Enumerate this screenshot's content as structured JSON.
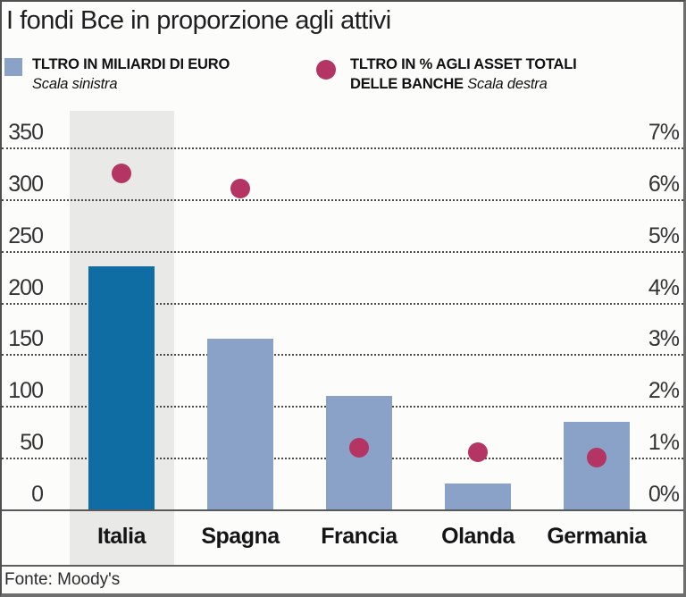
{
  "title": "I fondi Bce in proporzione agli attivi",
  "source": "Fonte: Moody's",
  "legend": {
    "series1_label": "TLTRO IN MILIARDI DI EURO",
    "series1_scale_note": "Scala sinistra",
    "series2_label_line1": "TLTRO IN % AGLI ASSET TOTALI",
    "series2_label_line2": "DELLE BANCHE",
    "series2_scale_note": "Scala destra"
  },
  "colors": {
    "bar_default": "#8aa2c8",
    "bar_highlight": "#0f6da4",
    "dot": "#b43563",
    "highlight_band": "#e9e9e7",
    "gridline": "#4a4a4a",
    "baseline": "#58595b"
  },
  "chart_data": {
    "type": "bar",
    "title": "I fondi Bce in proporzione agli attivi",
    "categories": [
      "Italia",
      "Spagna",
      "Francia",
      "Olanda",
      "Germania"
    ],
    "series": [
      {
        "name": "TLTRO IN MILIARDI DI EURO (Scala sinistra)",
        "type": "bar",
        "axis": "left",
        "values": [
          235,
          165,
          110,
          25,
          85
        ]
      },
      {
        "name": "TLTRO IN % AGLI ASSET TOTALI DELLE BANCHE (Scala destra)",
        "type": "scatter",
        "axis": "right",
        "values": [
          6.5,
          6.2,
          1.2,
          1.1,
          1.0
        ]
      }
    ],
    "left_axis": {
      "range": [
        0,
        350
      ],
      "ticks": [
        0,
        50,
        100,
        150,
        200,
        250,
        300,
        350
      ]
    },
    "right_axis": {
      "range": [
        0,
        7
      ],
      "tick_labels": [
        "0%",
        "1%",
        "2%",
        "3%",
        "4%",
        "5%",
        "6%",
        "7%"
      ]
    },
    "highlighted_category": "Italia",
    "grid": "horizontal-dotted",
    "legend_position": "top"
  }
}
